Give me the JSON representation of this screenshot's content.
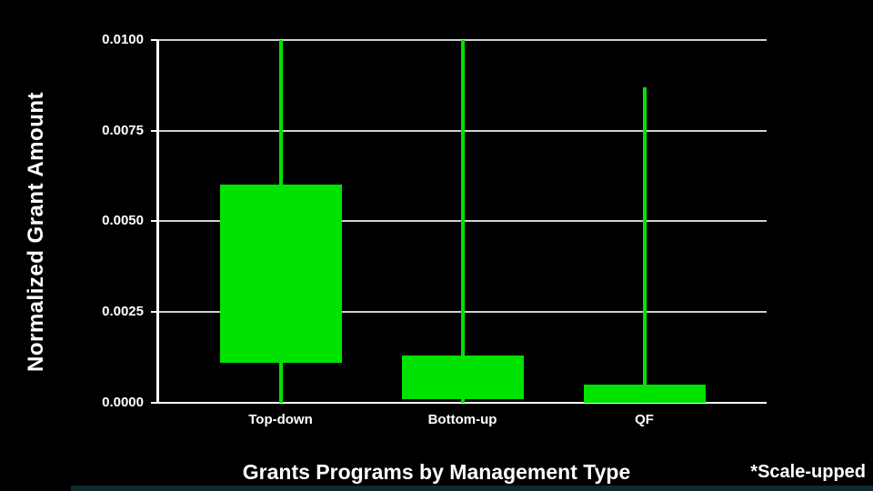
{
  "chart_data": {
    "type": "box",
    "style": "solid filled boxes with center vertical whiskers, no caps, no median line (candlestick-like)",
    "xlabel": "Grants Programs by Management Type",
    "ylabel": "Normalized Grant Amount",
    "annotation": "*Scale-upped",
    "categories": [
      "Top-down",
      "Bottom-up",
      "QF"
    ],
    "ylim": [
      0.0,
      0.01
    ],
    "yticks": [
      {
        "value": 0.01,
        "label": "0.0100"
      },
      {
        "value": 0.0075,
        "label": "0.0075"
      },
      {
        "value": 0.005,
        "label": "0.0050"
      },
      {
        "value": 0.0025,
        "label": "0.0025"
      },
      {
        "value": 0.0,
        "label": "0.0000"
      }
    ],
    "boxes": [
      {
        "category": "Top-down",
        "whisker_low": 0.0,
        "box_low": 0.0011,
        "box_high": 0.006,
        "whisker_high": 0.01,
        "whisker_high_clipped": true
      },
      {
        "category": "Bottom-up",
        "whisker_low": 0.0,
        "box_low": 0.0001,
        "box_high": 0.0013,
        "whisker_high": 0.01,
        "whisker_high_clipped": true
      },
      {
        "category": "QF",
        "whisker_low": 0.0,
        "box_low": 0.0,
        "box_high": 0.0005,
        "whisker_high": 0.0087,
        "whisker_high_clipped": false
      }
    ],
    "grid": true,
    "legend": false,
    "colors": {
      "box_fill": "#00e200",
      "grid": "#d0d0d0",
      "axis": "#ffffff",
      "text": "#ffffff",
      "background": "#000000",
      "footer_strip": "#0e2a2d"
    }
  }
}
